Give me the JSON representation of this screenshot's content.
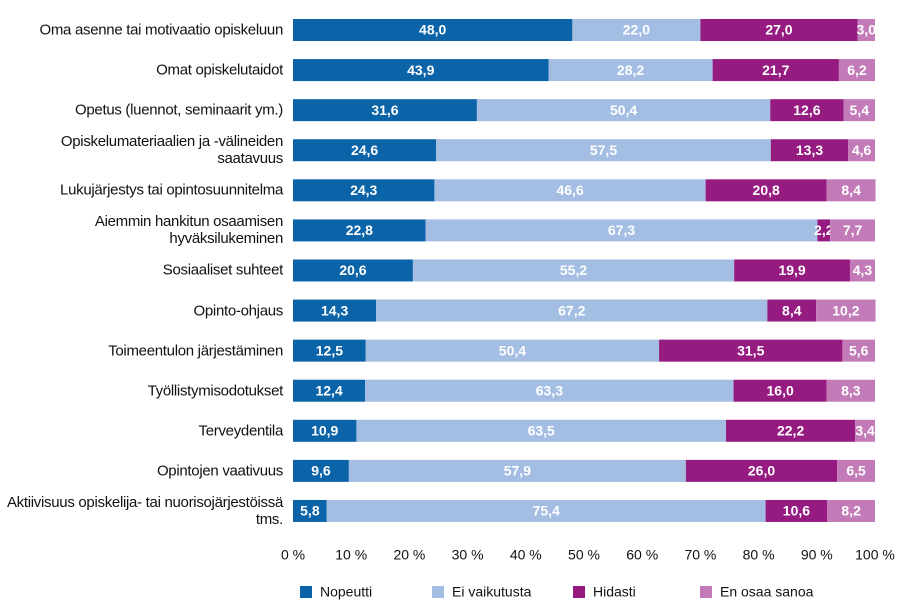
{
  "chart_data": {
    "type": "stacked-bar-horizontal",
    "categories": [
      "Oma asenne tai motivaatio opiskeluun",
      "Omat opiskelutaidot",
      "Opetus (luennot, seminaarit ym.)",
      "Opiskelumateriaalien ja -välineiden saatavuus",
      "Lukujärjestys tai opintosuunnitelma",
      "Aiemmin hankitun osaamisen hyväksilukeminen",
      "Sosiaaliset suhteet",
      "Opinto-ohjaus",
      "Toimeentulon järjestäminen",
      "Työllistymisodotukset",
      "Terveydentila",
      "Opintojen vaativuus",
      "Aktiivisuus opiskelija- tai nuorisojärjestöissä tms."
    ],
    "series": [
      {
        "name": "Nopeutti",
        "color": "#0b64a8",
        "values": [
          48.0,
          43.9,
          31.6,
          24.6,
          24.3,
          22.8,
          20.6,
          14.3,
          12.5,
          12.4,
          10.9,
          9.6,
          5.8
        ],
        "value_labels": [
          "48,0",
          "43,9",
          "31,6",
          "24,6",
          "24,3",
          "22,8",
          "20,6",
          "14,3",
          "12,5",
          "12,4",
          "10,9",
          "9,6",
          "5,8"
        ]
      },
      {
        "name": "Ei vaikutusta",
        "color": "#a3bde3",
        "values": [
          22.0,
          28.2,
          50.4,
          57.5,
          46.6,
          67.3,
          55.2,
          67.2,
          50.4,
          63.3,
          63.5,
          57.9,
          75.4
        ],
        "value_labels": [
          "22,0",
          "28,2",
          "50,4",
          "57,5",
          "46,6",
          "67,3",
          "55,2",
          "67,2",
          "50,4",
          "63,3",
          "63,5",
          "57,9",
          "75,4"
        ]
      },
      {
        "name": "Hidasti",
        "color": "#951b81",
        "values": [
          27.0,
          21.7,
          12.6,
          13.3,
          20.8,
          2.2,
          19.9,
          8.4,
          31.5,
          16.0,
          22.2,
          26.0,
          10.6
        ],
        "value_labels": [
          "27,0",
          "21,7",
          "12,6",
          "13,3",
          "20,8",
          "2,2",
          "19,9",
          "8,4",
          "31,5",
          "16,0",
          "22,2",
          "26,0",
          "10,6"
        ]
      },
      {
        "name": "En osaa sanoa",
        "color": "#c27bb8",
        "values": [
          3.0,
          6.2,
          5.4,
          4.6,
          8.4,
          7.7,
          4.3,
          10.2,
          5.6,
          8.3,
          3.4,
          6.5,
          8.2
        ],
        "value_labels": [
          "3,0",
          "6,2",
          "5,4",
          "4,6",
          "8,4",
          "7,7",
          "4,3",
          "10,2",
          "5,6",
          "8,3",
          "3,4",
          "6,5",
          "8,2"
        ]
      }
    ],
    "xlim": [
      0,
      100
    ],
    "xticks": [
      {
        "value": 0,
        "label": "0 %"
      },
      {
        "value": 10,
        "label": "10 %"
      },
      {
        "value": 20,
        "label": "20 %"
      },
      {
        "value": 30,
        "label": "30 %"
      },
      {
        "value": 40,
        "label": "40 %"
      },
      {
        "value": 50,
        "label": "50 %"
      },
      {
        "value": 60,
        "label": "60 %"
      },
      {
        "value": 70,
        "label": "70 %"
      },
      {
        "value": 80,
        "label": "80 %"
      },
      {
        "value": 90,
        "label": "90 %"
      },
      {
        "value": 100,
        "label": "100 %"
      }
    ],
    "legend": "bottom",
    "grid": false
  }
}
